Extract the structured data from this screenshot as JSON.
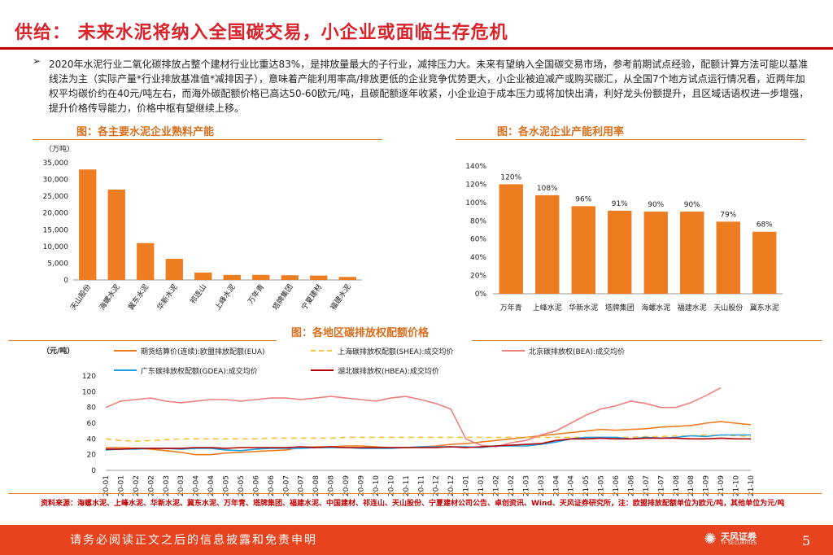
{
  "header": {
    "title": "供给： 未来水泥将纳入全国碳交易，小企业或面临生存危机"
  },
  "summary": {
    "bullet": "➢",
    "text": "2020年水泥行业二氧化碳排放占整个建材行业比重达83%，是排放量最大的子行业，减排压力大。未来有望纳入全国碳交易市场，参考前期试点经验，配额计算方法可能以基准线法为主（实际产量*行业排放基准值*减排因子），意味着产能利用率高/排放更低的企业竞争优势更大，小企业被迫减产或购买碳汇，从全国7个地方试点运行情况看，近两年加权平均碳价约在40元/吨左右，而海外碳配额价格已高达50-60欧元/吨，且碳配额逐年收紧，小企业迫于成本压力或将加快出清，利好龙头份额提升，且区域话语权进一步增强，提升价格传导能力，价格中枢有望继续上移。"
  },
  "captions": {
    "left": "图：各主要水泥企业熟料产能",
    "right": "图：各水泥企业产能利用率",
    "bottom": "图：各地区碳排放权配额价格"
  },
  "colors": {
    "accent": "#d9222a",
    "bar": "#ee7d22",
    "footer": "#e8431f"
  },
  "chart_data": [
    {
      "type": "bar",
      "title": "各主要水泥企业熟料产能",
      "unit": "（万吨）",
      "categories": [
        "天山股份",
        "海螺水泥",
        "冀东水泥",
        "华新水泥",
        "祁连山",
        "上峰水泥",
        "万年青",
        "塔牌集团",
        "宁夏建材",
        "福建水泥"
      ],
      "values": [
        33000,
        27000,
        11000,
        6300,
        2200,
        1500,
        1500,
        1400,
        1300,
        900
      ],
      "ylim": [
        0,
        35000
      ],
      "yticks": [
        "0",
        "5,000",
        "10,000",
        "15,000",
        "20,000",
        "25,000",
        "30,000",
        "35,000"
      ],
      "color": "#ee7d22"
    },
    {
      "type": "bar",
      "title": "各水泥企业产能利用率",
      "categories": [
        "万年青",
        "上峰水泥",
        "华新水泥",
        "塔牌集团",
        "海螺水泥",
        "福建水泥",
        "天山股份",
        "冀东水泥"
      ],
      "values": [
        120,
        108,
        96,
        91,
        90,
        90,
        79,
        68
      ],
      "labels": [
        "120%",
        "108%",
        "96%",
        "91%",
        "90%",
        "90%",
        "79%",
        "68%"
      ],
      "ylim": [
        0,
        140
      ],
      "yticks": [
        "0%",
        "20%",
        "40%",
        "60%",
        "80%",
        "100%",
        "120%",
        "140%"
      ],
      "color": "#ee7d22"
    },
    {
      "type": "line",
      "title": "各地区碳排放权配额价格",
      "unit": "（元/吨）",
      "ylim": [
        0,
        120
      ],
      "yticks": [
        "0",
        "20",
        "40",
        "60",
        "80",
        "100",
        "120"
      ],
      "xticks": [
        "20-01",
        "20-01",
        "20-02",
        "20-02",
        "20-03",
        "20-03",
        "20-04",
        "20-04",
        "20-05",
        "20-05",
        "20-06",
        "20-06",
        "20-07",
        "20-07",
        "20-08",
        "20-08",
        "20-09",
        "20-09",
        "20-10",
        "20-10",
        "20-11",
        "20-11",
        "20-12",
        "20-12",
        "21-01",
        "21-01",
        "21-02",
        "21-02",
        "21-03",
        "21-03",
        "21-04",
        "21-04",
        "21-05",
        "21-05",
        "21-06",
        "21-06",
        "21-07",
        "21-07",
        "21-08",
        "21-08",
        "21-09",
        "21-09",
        "21-10",
        "21-10"
      ],
      "series": [
        {
          "name": "期货结算价(连续):欧盟排放配额(EUA)",
          "color": "#ee7d22",
          "dash": "solid",
          "values": [
            29,
            29,
            28,
            27,
            25,
            23,
            20,
            20,
            22,
            23,
            24,
            25,
            26,
            29,
            30,
            30,
            31,
            31,
            30,
            29,
            29,
            30,
            31,
            33,
            34,
            36,
            38,
            40,
            42,
            44,
            46,
            48,
            50,
            52,
            51,
            52,
            53,
            55,
            56,
            57,
            60,
            62,
            60,
            58
          ]
        },
        {
          "name": "上海碳排放权配额(SHEA):成交均价",
          "color": "#f5c242",
          "dash": "dashed",
          "values": [
            40,
            38,
            37,
            38,
            39,
            40,
            40,
            40,
            40,
            40,
            40,
            41,
            41,
            41,
            41,
            41,
            42,
            42,
            42,
            42,
            42,
            42,
            42,
            42,
            42,
            42,
            42,
            42,
            42,
            42,
            42,
            42,
            42,
            42,
            42,
            42,
            43,
            43,
            44,
            44,
            45,
            45,
            44,
            43
          ]
        },
        {
          "name": "北京碳排放权(BEA):成交均价",
          "color": "#f08080",
          "dash": "solid",
          "values": [
            80,
            88,
            90,
            92,
            88,
            86,
            88,
            90,
            90,
            88,
            90,
            92,
            92,
            90,
            92,
            94,
            92,
            90,
            88,
            92,
            94,
            90,
            85,
            78,
            40,
            32,
            30,
            35,
            38,
            45,
            50,
            60,
            70,
            78,
            82,
            88,
            85,
            80,
            80,
            86,
            95,
            105,
            null,
            null
          ]
        },
        {
          "name": "广东碳排放权配额(GDEA):成交均价",
          "color": "#1f9ee0",
          "dash": "solid",
          "values": [
            26,
            27,
            27,
            28,
            28,
            27,
            28,
            28,
            26,
            25,
            27,
            28,
            28,
            28,
            29,
            29,
            29,
            28,
            28,
            28,
            29,
            30,
            30,
            30,
            30,
            29,
            31,
            31,
            31,
            33,
            36,
            40,
            42,
            42,
            42,
            40,
            42,
            41,
            42,
            44,
            43,
            45,
            45,
            45
          ]
        },
        {
          "name": "湖北碳排放权(HBEA):成交均价",
          "color": "#b20000",
          "dash": "solid",
          "values": [
            27,
            27,
            28,
            28,
            28,
            28,
            29,
            29,
            28,
            29,
            29,
            29,
            29,
            30,
            29,
            30,
            29,
            29,
            29,
            29,
            29,
            29,
            29,
            30,
            29,
            30,
            31,
            32,
            33,
            34,
            38,
            40,
            40,
            41,
            40,
            40,
            41,
            41,
            41,
            40,
            40,
            41,
            40,
            40
          ]
        }
      ]
    }
  ],
  "source_note": "资料来源：海螺水泥、上峰水泥、华新水泥、冀东水泥、万年青、塔牌集团、福建水泥、中国建材、祁连山、天山股份、宁夏建材公司公告、卓创资讯、Wind、天风证券研究所，注：欧盟排放配额单位为欧元/吨，其他单位为元/吨",
  "footer": {
    "disclaimer": "请务必阅读正文之后的信息披露和免责申明",
    "logo_text": "天风证券",
    "logo_sub": "TF SECURITIES",
    "page": "5"
  }
}
